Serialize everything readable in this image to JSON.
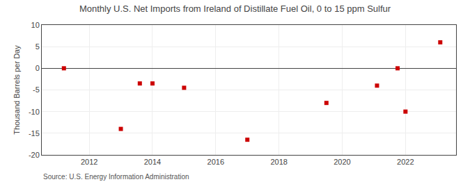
{
  "chart_data": {
    "type": "scatter",
    "title": "Monthly U.S. Net Imports from Ireland of Distillate Fuel Oil, 0 to 15 ppm Sulfur",
    "ylabel": "Thousand Barrels per Day",
    "annotations": [
      "Source: U.S. Energy Information Administration"
    ],
    "x": [
      2011.2,
      2013.0,
      2013.6,
      2014.0,
      2015.0,
      2017.0,
      2019.5,
      2021.1,
      2021.75,
      2022.0,
      2023.1
    ],
    "values": [
      0,
      -14,
      -3.5,
      -3.5,
      -4.5,
      -16.5,
      -8,
      -4,
      0,
      -10,
      6
    ],
    "color": "#cc0000",
    "marker": "square",
    "xlim": [
      2010.5,
      2023.6
    ],
    "xticks": [
      2012,
      2014,
      2016,
      2018,
      2020,
      2022
    ],
    "ylim": [
      -20,
      10
    ],
    "yticks": [
      -20,
      -15,
      -10,
      -5,
      0,
      5,
      10
    ],
    "grid": true
  }
}
